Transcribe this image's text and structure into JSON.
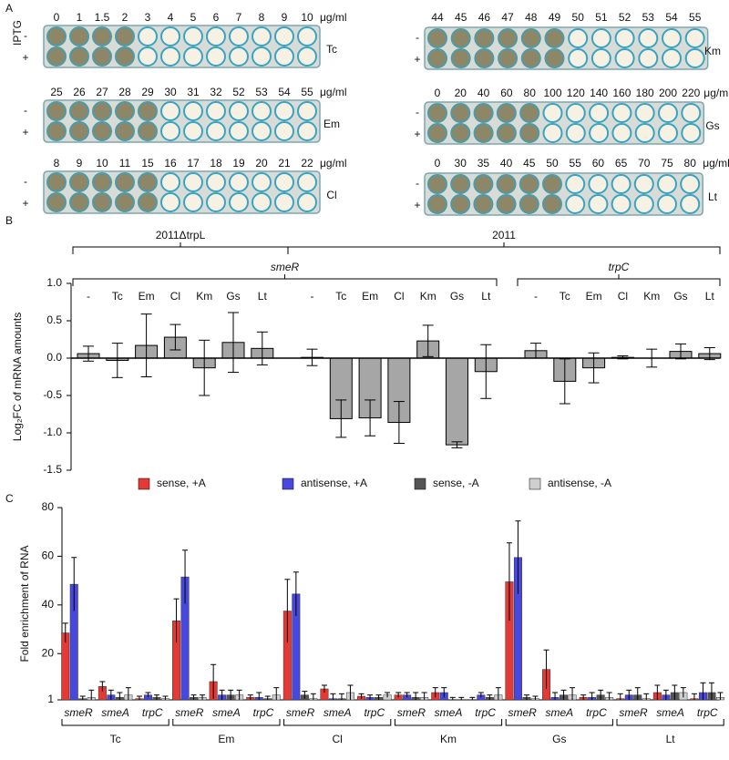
{
  "panel_a": {
    "label": "A",
    "iptg": "IPTG",
    "minus": "-",
    "plus": "+",
    "plates": [
      {
        "name": "Tc",
        "unit": "μg/ml",
        "concentrations": [
          "0",
          "1",
          "1.5",
          "2",
          "3",
          "4",
          "5",
          "6",
          "7",
          "8",
          "9",
          "10"
        ]
      },
      {
        "name": "Em",
        "unit": "μg/ml",
        "concentrations": [
          "25",
          "26",
          "27",
          "28",
          "29",
          "30",
          "31",
          "32",
          "52",
          "53",
          "54",
          "55"
        ]
      },
      {
        "name": "Cl",
        "unit": "μg/ml",
        "concentrations": [
          "8",
          "9",
          "10",
          "11",
          "15",
          "16",
          "17",
          "18",
          "19",
          "20",
          "21",
          "22"
        ]
      },
      {
        "name": "Km",
        "concentrations": [
          "44",
          "45",
          "46",
          "47",
          "48",
          "49",
          "50",
          "51",
          "52",
          "53",
          "54",
          "55"
        ]
      },
      {
        "name": "Gs",
        "unit": "μg/ml",
        "concentrations": [
          "0",
          "20",
          "40",
          "60",
          "80",
          "100",
          "120",
          "140",
          "160",
          "180",
          "200",
          "220"
        ]
      },
      {
        "name": "Lt",
        "unit": "μg/ml",
        "concentrations": [
          "0",
          "30",
          "35",
          "40",
          "45",
          "50",
          "55",
          "60",
          "65",
          "70",
          "75",
          "80"
        ]
      }
    ]
  },
  "chart_data": [
    {
      "type": "bar",
      "panel_label": "B",
      "y_label": "Log₂FC of mRNA amounts",
      "strains": [
        "2011ΔtrpL",
        "2011"
      ],
      "genes": [
        "smeR",
        "trpC"
      ],
      "categories": [
        "-",
        "Tc",
        "Em",
        "Cl",
        "Km",
        "Gs",
        "Lt",
        "-",
        "Tc",
        "Em",
        "Cl",
        "Km",
        "Gs",
        "Lt",
        "-",
        "Tc",
        "Em",
        "Cl",
        "Km",
        "Gs",
        "Lt"
      ],
      "values": [
        0.06,
        -0.03,
        0.17,
        0.28,
        -0.13,
        0.21,
        0.13,
        0.01,
        -0.81,
        -0.8,
        -0.86,
        0.23,
        -1.16,
        -0.18,
        0.1,
        -0.31,
        -0.13,
        0.01,
        0,
        0.09,
        0.06
      ],
      "errors": [
        0.1,
        0.23,
        0.42,
        0.17,
        0.37,
        0.4,
        0.22,
        0.11,
        0.25,
        0.24,
        0.28,
        0.21,
        0.04,
        0.36,
        0.1,
        0.3,
        0.2,
        0.02,
        0.12,
        0.1,
        0.08
      ],
      "color": "#a6a6a6",
      "ylim": [
        -1.5,
        1.0
      ],
      "yticks": [
        {
          "value": 1,
          "label": "1.0"
        },
        0.5,
        {
          "value": 0,
          "label": "0.0"
        },
        -0.5,
        {
          "value": -1,
          "label": "-1.0"
        },
        -1.5
      ]
    },
    {
      "type": "grouped_bar",
      "panel_label": "C",
      "y_label": "Fold enrichment of RNA",
      "categories": [
        "smeR",
        "smeA",
        "trpC",
        "smeR",
        "smeA",
        "trpC",
        "smeR",
        "smeA",
        "trpC",
        "smeR",
        "smeA",
        "trpC",
        "smeR",
        "smeA",
        "trpC",
        "smeR",
        "smeA",
        "trpC"
      ],
      "groups": [
        "Tc",
        "Em",
        "Cl",
        "Km",
        "Gs",
        "Lt"
      ],
      "series": [
        {
          "name": "sense, +A",
          "color": "#e53935",
          "values": [
            28.5,
            6.5,
            1.5,
            33.5,
            8.5,
            2,
            37.5,
            5.5,
            2.5,
            3,
            4,
            1,
            49.5,
            13.5,
            2,
            1.5,
            4,
            1.5
          ],
          "errors": [
            4,
            2,
            1,
            9,
            7,
            1,
            13,
            1.5,
            1,
            1,
            2,
            1,
            16,
            8,
            1,
            2,
            3,
            2
          ]
        },
        {
          "name": "antisense, +A",
          "color": "#4848e0",
          "values": [
            48.5,
            3,
            3,
            51.5,
            3,
            2,
            44.5,
            1.5,
            2,
            3,
            4,
            3,
            59.5,
            2,
            2,
            3,
            3,
            4
          ],
          "errors": [
            11,
            2,
            1,
            11,
            2,
            2,
            9,
            2,
            1,
            1,
            2,
            1,
            15,
            2,
            2,
            2,
            2,
            4
          ]
        },
        {
          "name": "sense, -A",
          "color": "#555555",
          "values": [
            1.5,
            2,
            2,
            2,
            3,
            1.5,
            3,
            1.5,
            2,
            2,
            1,
            2,
            2,
            3,
            3,
            3,
            4,
            4
          ],
          "errors": [
            1,
            2,
            1,
            1,
            2,
            1,
            1.5,
            2,
            1,
            2,
            1,
            1,
            1,
            2,
            2,
            3,
            3,
            4
          ]
        },
        {
          "name": "antisense, -A",
          "color": "#cfcfcf",
          "values": [
            2,
            3,
            1.5,
            2,
            3,
            3,
            1.5,
            4,
            3,
            2,
            1,
            3,
            1.5,
            3,
            2,
            1.5,
            4,
            2
          ],
          "errors": [
            3,
            3,
            1,
            1,
            2,
            3,
            2,
            3,
            1,
            2,
            1,
            3,
            1,
            3,
            2,
            2,
            2,
            2
          ]
        }
      ],
      "ylim": [
        1,
        80
      ],
      "yticks": [
        1,
        20,
        40,
        60,
        80
      ]
    }
  ]
}
